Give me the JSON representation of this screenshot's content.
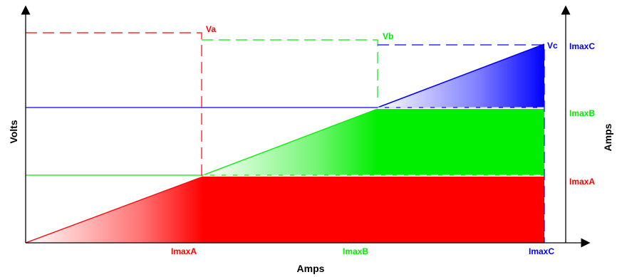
{
  "colors": {
    "a": "#ff0000",
    "b": "#00ee00",
    "c": "#0000ff",
    "axis": "#000000"
  },
  "axes": {
    "x_title": "Amps",
    "y_title": "Volts",
    "y2_title": "Amps"
  },
  "x_ticks": [
    "ImaxA",
    "ImaxB",
    "ImaxC"
  ],
  "right_labels": [
    "ImaxC",
    "ImaxB",
    "ImaxA"
  ],
  "voltage_labels": [
    "Va",
    "Vb",
    "Vc"
  ]
}
